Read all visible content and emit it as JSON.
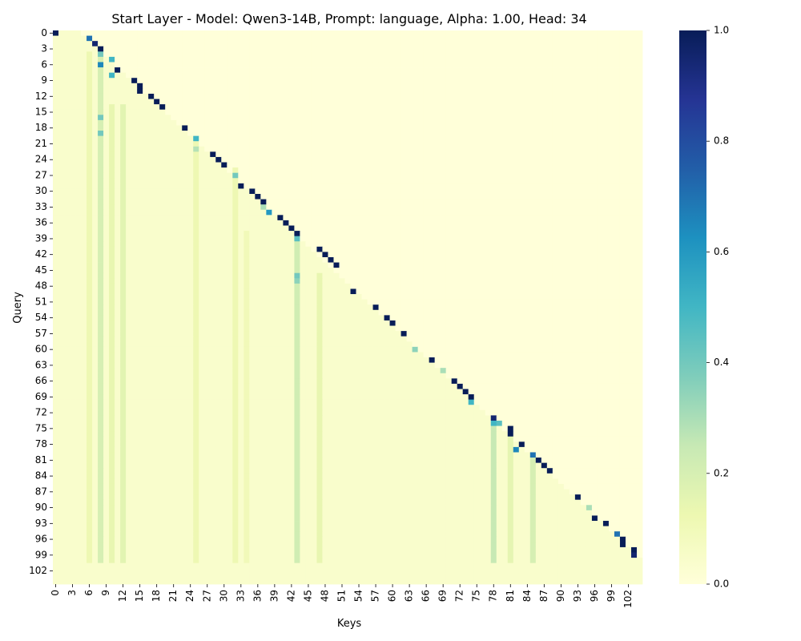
{
  "chart_data": {
    "type": "heatmap",
    "title": "Start Layer - Model: Qwen3-14B, Prompt: language, Alpha: 1.00, Head: 34",
    "xlabel": "Keys",
    "ylabel": "Query",
    "size": 105,
    "tick_step": 3,
    "x_tick_labels": [
      "0",
      "3",
      "6",
      "9",
      "12",
      "15",
      "18",
      "21",
      "24",
      "27",
      "30",
      "33",
      "36",
      "39",
      "42",
      "45",
      "48",
      "51",
      "54",
      "57",
      "60",
      "63",
      "66",
      "69",
      "72",
      "75",
      "78",
      "81",
      "84",
      "87",
      "90",
      "93",
      "96",
      "99",
      "102"
    ],
    "y_tick_labels": [
      "0",
      "3",
      "6",
      "9",
      "12",
      "15",
      "18",
      "21",
      "24",
      "27",
      "30",
      "33",
      "36",
      "39",
      "42",
      "45",
      "48",
      "51",
      "54",
      "57",
      "60",
      "63",
      "66",
      "69",
      "72",
      "75",
      "78",
      "81",
      "84",
      "87",
      "90",
      "93",
      "96",
      "99",
      "102"
    ],
    "colorbar": {
      "colormap": "YlGnBu",
      "vmin": 0.0,
      "vmax": 1.0,
      "tick_labels": [
        "0.0",
        "0.2",
        "0.4",
        "0.6",
        "0.8",
        "1.0"
      ],
      "tick_values": [
        0.0,
        0.2,
        0.4,
        0.6,
        0.8,
        1.0
      ]
    },
    "background_value": 0.04,
    "prominent_cells": [
      {
        "q": 0,
        "k": 0,
        "v": 1.0
      },
      {
        "q": 1,
        "k": 6,
        "v": 0.7
      },
      {
        "q": 2,
        "k": 7,
        "v": 0.95
      },
      {
        "q": 3,
        "k": 8,
        "v": 1.0
      },
      {
        "q": 4,
        "k": 8,
        "v": 0.4
      },
      {
        "q": 5,
        "k": 10,
        "v": 0.5
      },
      {
        "q": 6,
        "k": 8,
        "v": 0.65
      },
      {
        "q": 7,
        "k": 11,
        "v": 1.0
      },
      {
        "q": 8,
        "k": 10,
        "v": 0.5
      },
      {
        "q": 9,
        "k": 14,
        "v": 1.0
      },
      {
        "q": 10,
        "k": 15,
        "v": 1.0
      },
      {
        "q": 11,
        "k": 15,
        "v": 1.0
      },
      {
        "q": 12,
        "k": 17,
        "v": 1.0
      },
      {
        "q": 13,
        "k": 18,
        "v": 1.0
      },
      {
        "q": 14,
        "k": 19,
        "v": 1.0
      },
      {
        "q": 16,
        "k": 8,
        "v": 0.4
      },
      {
        "q": 18,
        "k": 23,
        "v": 1.0
      },
      {
        "q": 19,
        "k": 8,
        "v": 0.4
      },
      {
        "q": 20,
        "k": 25,
        "v": 0.5
      },
      {
        "q": 22,
        "k": 25,
        "v": 0.28
      },
      {
        "q": 23,
        "k": 28,
        "v": 1.0
      },
      {
        "q": 24,
        "k": 29,
        "v": 1.0
      },
      {
        "q": 25,
        "k": 30,
        "v": 1.0
      },
      {
        "q": 27,
        "k": 32,
        "v": 0.4
      },
      {
        "q": 29,
        "k": 33,
        "v": 1.0
      },
      {
        "q": 30,
        "k": 35,
        "v": 1.0
      },
      {
        "q": 31,
        "k": 36,
        "v": 1.0
      },
      {
        "q": 32,
        "k": 37,
        "v": 1.0
      },
      {
        "q": 33,
        "k": 37,
        "v": 0.3
      },
      {
        "q": 34,
        "k": 38,
        "v": 0.6
      },
      {
        "q": 35,
        "k": 40,
        "v": 1.0
      },
      {
        "q": 36,
        "k": 41,
        "v": 1.0
      },
      {
        "q": 37,
        "k": 42,
        "v": 1.0
      },
      {
        "q": 38,
        "k": 43,
        "v": 1.0
      },
      {
        "q": 39,
        "k": 43,
        "v": 0.45
      },
      {
        "q": 41,
        "k": 47,
        "v": 1.0
      },
      {
        "q": 42,
        "k": 48,
        "v": 1.0
      },
      {
        "q": 43,
        "k": 49,
        "v": 1.0
      },
      {
        "q": 44,
        "k": 50,
        "v": 1.0
      },
      {
        "q": 46,
        "k": 43,
        "v": 0.4
      },
      {
        "q": 47,
        "k": 43,
        "v": 0.35
      },
      {
        "q": 49,
        "k": 53,
        "v": 1.0
      },
      {
        "q": 52,
        "k": 57,
        "v": 1.0
      },
      {
        "q": 54,
        "k": 59,
        "v": 1.0
      },
      {
        "q": 55,
        "k": 60,
        "v": 1.0
      },
      {
        "q": 57,
        "k": 62,
        "v": 1.0
      },
      {
        "q": 60,
        "k": 64,
        "v": 0.35
      },
      {
        "q": 62,
        "k": 67,
        "v": 1.0
      },
      {
        "q": 64,
        "k": 69,
        "v": 0.3
      },
      {
        "q": 66,
        "k": 71,
        "v": 1.0
      },
      {
        "q": 67,
        "k": 72,
        "v": 1.0
      },
      {
        "q": 68,
        "k": 73,
        "v": 1.0
      },
      {
        "q": 69,
        "k": 74,
        "v": 1.0
      },
      {
        "q": 70,
        "k": 74,
        "v": 0.5
      },
      {
        "q": 73,
        "k": 78,
        "v": 0.95
      },
      {
        "q": 74,
        "k": 78,
        "v": 0.5
      },
      {
        "q": 74,
        "k": 79,
        "v": 0.45
      },
      {
        "q": 75,
        "k": 81,
        "v": 1.0
      },
      {
        "q": 76,
        "k": 81,
        "v": 1.0
      },
      {
        "q": 78,
        "k": 83,
        "v": 1.0
      },
      {
        "q": 79,
        "k": 82,
        "v": 0.65
      },
      {
        "q": 80,
        "k": 85,
        "v": 0.7
      },
      {
        "q": 81,
        "k": 86,
        "v": 1.0
      },
      {
        "q": 82,
        "k": 87,
        "v": 1.0
      },
      {
        "q": 83,
        "k": 88,
        "v": 1.0
      },
      {
        "q": 88,
        "k": 93,
        "v": 1.0
      },
      {
        "q": 90,
        "k": 95,
        "v": 0.3
      },
      {
        "q": 92,
        "k": 96,
        "v": 1.0
      },
      {
        "q": 93,
        "k": 98,
        "v": 1.0
      },
      {
        "q": 95,
        "k": 100,
        "v": 0.7
      },
      {
        "q": 96,
        "k": 101,
        "v": 1.0
      },
      {
        "q": 97,
        "k": 101,
        "v": 1.0
      },
      {
        "q": 98,
        "k": 103,
        "v": 1.0
      },
      {
        "q": 99,
        "k": 103,
        "v": 0.95
      }
    ],
    "secondary_columns": [
      {
        "k": 6,
        "q_from": 4,
        "q_to": 100,
        "v": 0.12
      },
      {
        "k": 8,
        "q_from": 4,
        "q_to": 100,
        "v": 0.2
      },
      {
        "k": 10,
        "q_from": 14,
        "q_to": 100,
        "v": 0.14
      },
      {
        "k": 12,
        "q_from": 14,
        "q_to": 100,
        "v": 0.16
      },
      {
        "k": 25,
        "q_from": 20,
        "q_to": 100,
        "v": 0.12
      },
      {
        "k": 32,
        "q_from": 26,
        "q_to": 100,
        "v": 0.12
      },
      {
        "k": 34,
        "q_from": 38,
        "q_to": 100,
        "v": 0.1
      },
      {
        "k": 43,
        "q_from": 38,
        "q_to": 100,
        "v": 0.22
      },
      {
        "k": 47,
        "q_from": 46,
        "q_to": 100,
        "v": 0.14
      },
      {
        "k": 78,
        "q_from": 73,
        "q_to": 100,
        "v": 0.25
      },
      {
        "k": 81,
        "q_from": 75,
        "q_to": 100,
        "v": 0.15
      },
      {
        "k": 85,
        "q_from": 80,
        "q_to": 100,
        "v": 0.2
      }
    ]
  }
}
